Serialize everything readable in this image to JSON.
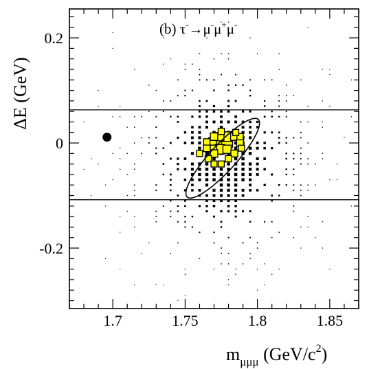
{
  "chart_data": {
    "type": "scatter",
    "panel_label": "(b)",
    "process_label": {
      "tau": "τ",
      "arrow": "→",
      "mu": "μ",
      "minus": "-",
      "plus": "+"
    },
    "x_axis": {
      "label_main": "m",
      "label_sub": "μμμ",
      "label_unit": "(GeV/c",
      "label_sup": "2",
      "label_close": ")",
      "range": [
        1.67,
        1.87
      ],
      "major_ticks": [
        1.7,
        1.75,
        1.8,
        1.85
      ],
      "tick_labels": [
        "1.7",
        "1.75",
        "1.8",
        "1.85"
      ]
    },
    "y_axis": {
      "label": "ΔE (GeV)",
      "range": [
        -0.315,
        0.255
      ],
      "major_ticks": [
        -0.2,
        0,
        0.2
      ],
      "tick_labels": [
        "-0.2",
        "0",
        "0.2"
      ]
    },
    "grid": false,
    "signal_band": {
      "y_low": -0.108,
      "y_high": 0.063
    },
    "signal_ellipse": {
      "cx": 1.776,
      "cy": -0.029,
      "semi_major_dir_x": 0.024,
      "semi_major_dir_y": 0.075,
      "semi_minor_dir_x": -0.0085,
      "semi_minor_dir_y": 0.0115
    },
    "data_points": [
      {
        "x": 1.696,
        "y": 0.011
      }
    ],
    "signal_mc_boxes": [
      {
        "x": 1.774,
        "y": -0.002,
        "w": 0.3
      },
      {
        "x": 1.779,
        "y": 0.002,
        "w": 0.25
      },
      {
        "x": 1.769,
        "y": 0.002,
        "w": 0.15
      },
      {
        "x": 1.774,
        "y": -0.012,
        "w": 0.2
      },
      {
        "x": 1.779,
        "y": 0.012,
        "w": 0.2
      },
      {
        "x": 1.774,
        "y": 0.012,
        "w": 0.15
      },
      {
        "x": 1.769,
        "y": -0.012,
        "w": 0.15
      },
      {
        "x": 1.779,
        "y": -0.012,
        "w": 0.15
      }
    ],
    "colors": {
      "signal_mc_fill": "#ffff00",
      "data_point": "#000000",
      "mc_box": "#000000"
    }
  }
}
